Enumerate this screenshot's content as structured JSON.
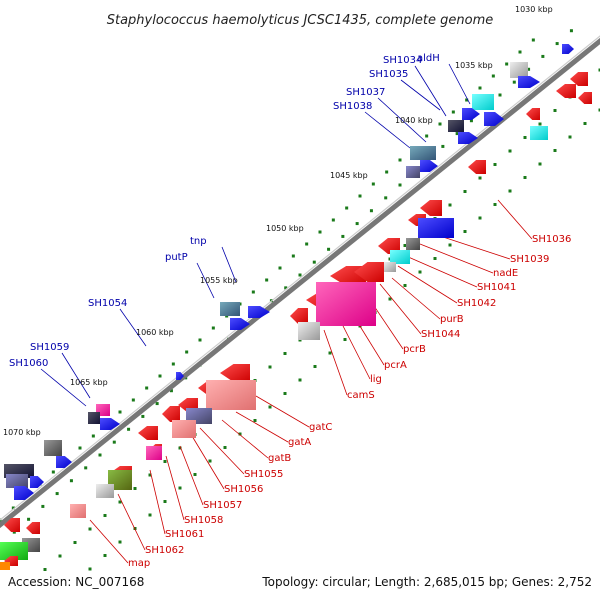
{
  "title": "Staphylococcus haemolyticus JCSC1435, complete genome",
  "footer": {
    "accession": "Accession: NC_007168",
    "topology": "Topology: circular; Length: 2,685,015 bp; Genes: 2,752"
  },
  "colors": {
    "forward_label": "#0000aa",
    "reverse_label": "#cc0000",
    "backbone": "#777777",
    "tick": "#1a7a1a"
  },
  "ticks": [
    "1030 kbp",
    "1035 kbp",
    "1040 kbp",
    "1045 kbp",
    "1050 kbp",
    "1055 kbp",
    "1060 kbp",
    "1065 kbp",
    "1070 kbp"
  ],
  "forward_labels": [
    "aldH",
    "SH1034",
    "SH1035",
    "SH1037",
    "SH1038",
    "tnp",
    "putP",
    "SH1054",
    "SH1059",
    "SH1060"
  ],
  "reverse_labels": [
    "SH1036",
    "SH1039",
    "nadE",
    "SH1041",
    "SH1042",
    "purB",
    "SH1044",
    "pcrB",
    "pcrA",
    "lig",
    "camS",
    "gatC",
    "gatA",
    "gatB",
    "SH1055",
    "SH1056",
    "SH1057",
    "SH1058",
    "SH1061",
    "SH1062",
    "map"
  ]
}
